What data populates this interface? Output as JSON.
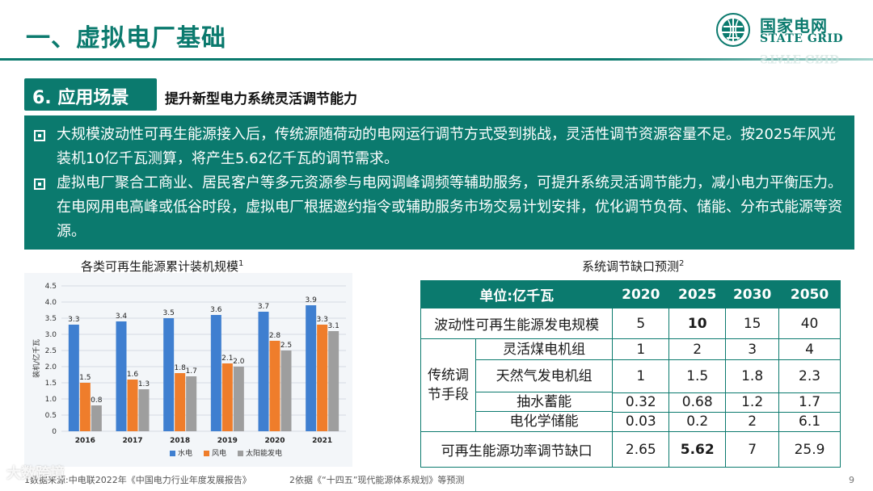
{
  "header": {
    "title": "一、虚拟电厂基础",
    "logo_cn": "国家电网",
    "logo_en": "STATE GRID",
    "logo_ghost": "STATE GRID"
  },
  "section": {
    "tag": "6. 应用场景",
    "subtitle": "提升新型电力系统灵活调节能力"
  },
  "bullets": [
    "大规模波动性可再生能源接入后，传统源随荷动的电网运行调节方式受到挑战，灵活性调节资源容量不足。按2025年风光装机10亿千瓦测算，将产生5.62亿千瓦的调节需求。",
    "虚拟电厂聚合工商业、居民客户等多元资源参与电网调峰调频等辅助服务，可提升系统灵活调节能力，减小电力平衡压力。在电网用电高峰或低谷时段，虚拟电厂根据邀约指令或辅助服务市场交易计划安排，优化调节负荷、储能、分布式能源等资源。"
  ],
  "chart_data": {
    "type": "bar",
    "title": "各类可再生能源累计装机规模",
    "title_sup": "1",
    "ylabel": "装机/亿千瓦",
    "categories": [
      "2016",
      "2017",
      "2018",
      "2019",
      "2020",
      "2021"
    ],
    "ylim": [
      0,
      4.5
    ],
    "yticks": [
      "0",
      "0.5",
      "1.0",
      "1.5",
      "2.0",
      "2.5",
      "3.0",
      "3.5",
      "4.0",
      "4.5"
    ],
    "grid": true,
    "legend_position": "bottom",
    "series": [
      {
        "name": "水电",
        "color": "#3f7fd0",
        "values": [
          3.3,
          3.4,
          3.5,
          3.6,
          3.7,
          3.9
        ],
        "labels": [
          "3.3",
          "3.4",
          "3.5",
          "3.6",
          "3.7",
          "3.9"
        ]
      },
      {
        "name": "风电",
        "color": "#ef7d2b",
        "values": [
          1.5,
          1.6,
          1.8,
          2.1,
          2.8,
          3.3
        ],
        "labels": [
          "1.5",
          "1.6",
          "1.8",
          "2.1",
          "2.8",
          "3.3"
        ]
      },
      {
        "name": "太阳能发电",
        "color": "#9e9e9e",
        "values": [
          0.8,
          1.3,
          1.7,
          2.0,
          2.5,
          3.1
        ],
        "labels": [
          "0.8",
          "1.3",
          "1.7",
          "2.0",
          "2.5",
          "3.1"
        ]
      }
    ]
  },
  "table": {
    "title": "系统调节缺口预测",
    "title_sup": "2",
    "header": [
      "单位:亿千瓦",
      "2020",
      "2025",
      "2030",
      "2050"
    ],
    "row_fluct": {
      "label": "波动性可再生能源发电规模",
      "values": [
        "5",
        "10",
        "15",
        "40"
      ]
    },
    "group_label": "传统调节手段",
    "group_rows": [
      {
        "label": "灵活煤电机组",
        "values": [
          "1",
          "2",
          "3",
          "4"
        ]
      },
      {
        "label": "天然气发电机组",
        "values": [
          "1",
          "1.5",
          "1.8",
          "2.3"
        ]
      },
      {
        "label": "抽水蓄能",
        "values": [
          "0.32",
          "0.68",
          "1.2",
          "1.7"
        ]
      },
      {
        "label": "电化学储能",
        "values": [
          "0.03",
          "0.2",
          "2",
          "6.1"
        ]
      }
    ],
    "row_gap": {
      "label": "可再生能源功率调节缺口",
      "values": [
        "2.65",
        "5.62",
        "7",
        "25.9"
      ]
    }
  },
  "footer": {
    "note1": "1数据来源:中电联2022年《中国电力行业年度发展报告》",
    "note2": "2依据《“十四五”现代能源体系规划》等预测",
    "page": "9",
    "watermark": "大数跨境"
  }
}
